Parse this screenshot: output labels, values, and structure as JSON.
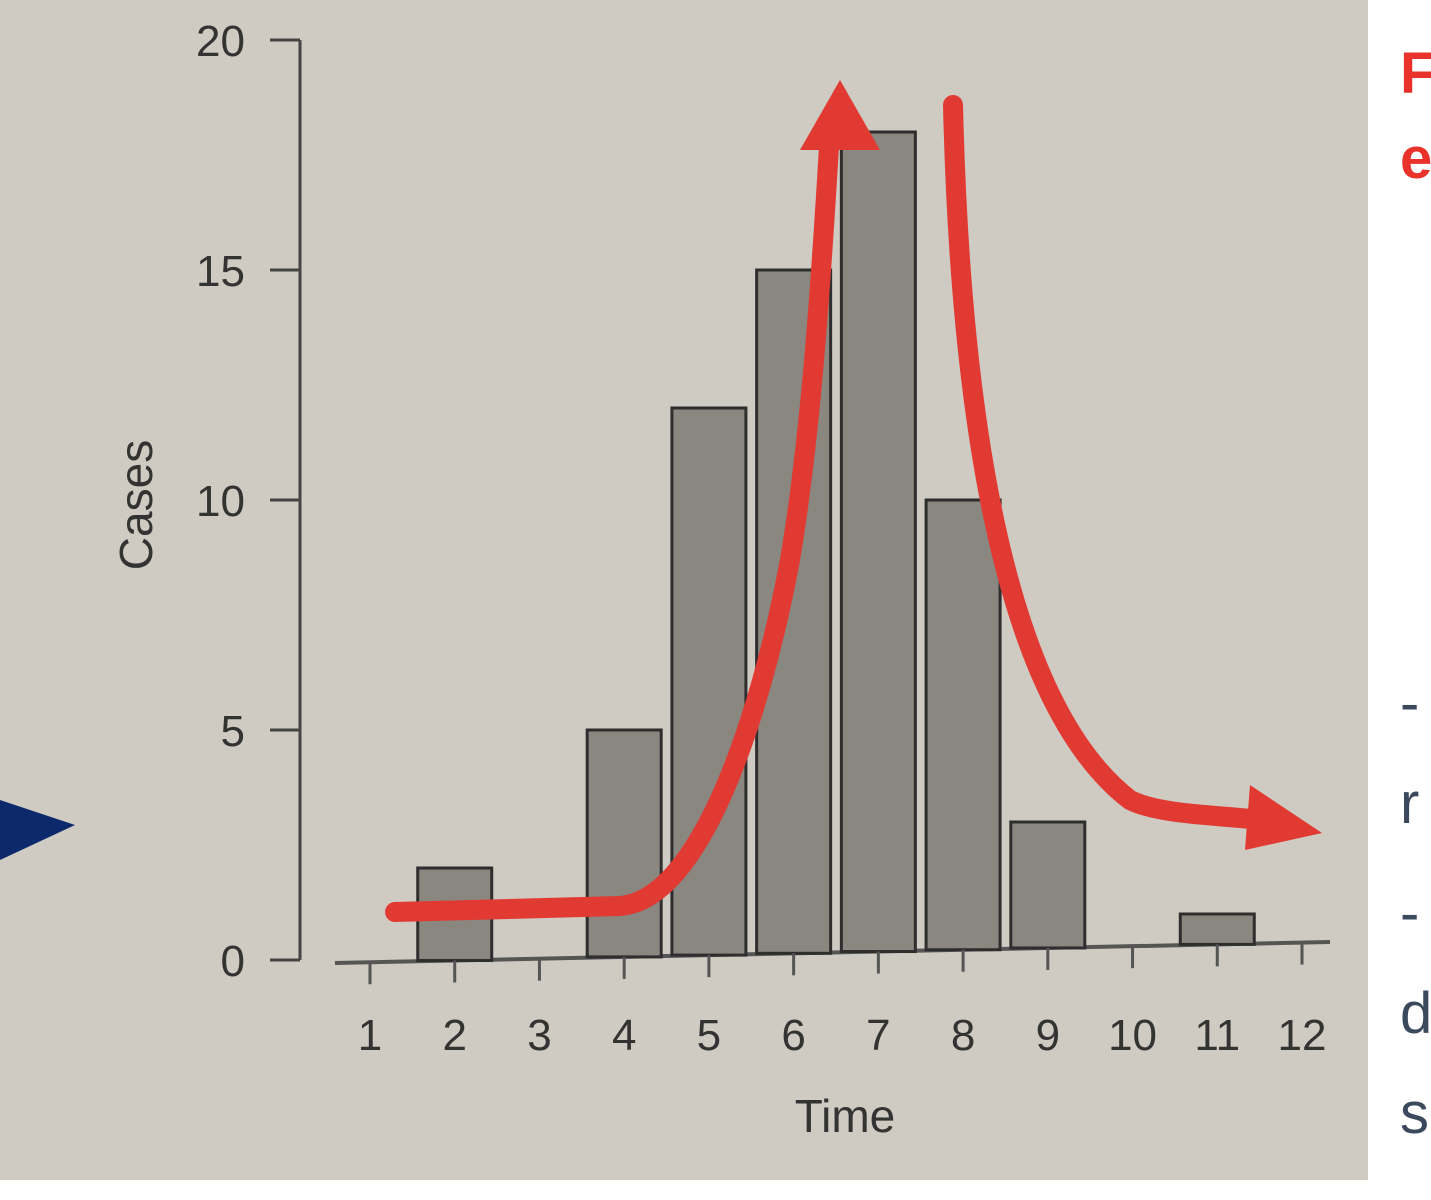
{
  "chart_data": {
    "type": "bar",
    "title": "",
    "xlabel": "Time",
    "ylabel": "Cases",
    "x": [
      1,
      2,
      3,
      4,
      5,
      6,
      7,
      8,
      9,
      10,
      11,
      12
    ],
    "values": [
      0,
      2,
      0,
      5,
      12,
      15,
      18,
      10,
      3,
      0,
      1,
      0
    ],
    "ylim": [
      0,
      20
    ],
    "yticks": [
      0,
      5,
      10,
      15,
      20
    ],
    "xticks": [
      "1",
      "2",
      "3",
      "4",
      "5",
      "6",
      "7",
      "8",
      "9",
      "10",
      "11",
      "12"
    ],
    "grid": false,
    "bar_color": "#8a8780",
    "annotations": {
      "arrow_color": "#e03a33",
      "pointer_arrow_color": "#0c2a6b"
    }
  },
  "side_text_fragments": [
    "F",
    "e",
    "-",
    "r",
    "-",
    "d",
    "s"
  ]
}
